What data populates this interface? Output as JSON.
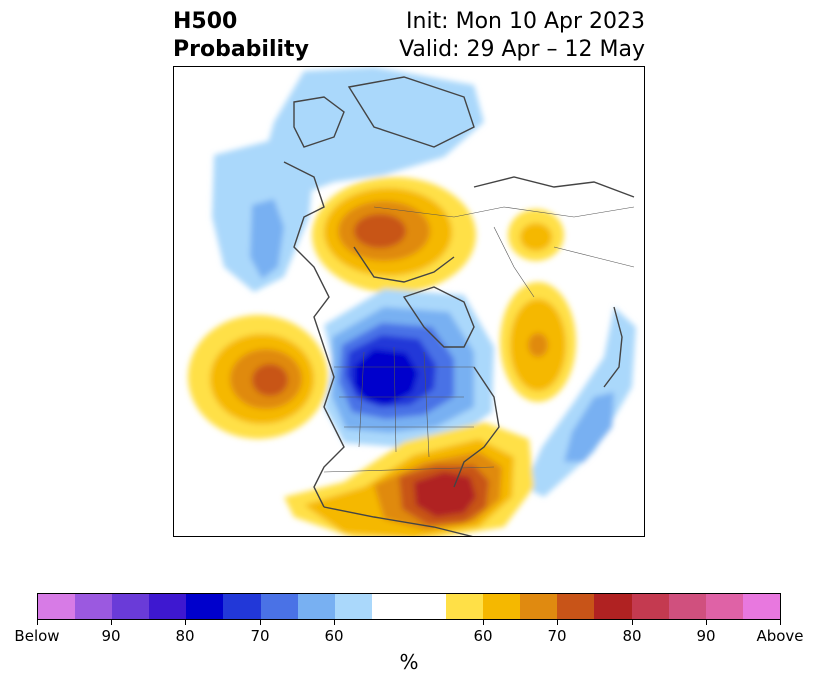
{
  "header": {
    "title_line1": "H500",
    "title_line2": "Probability",
    "init_text": "Init: Mon 10 Apr 2023",
    "valid_text": "Valid: 29 Apr – 12 May"
  },
  "colorbar": {
    "colors": [
      "#d77be6",
      "#9b59e0",
      "#6a3bd8",
      "#3e18d0",
      "#0000cc",
      "#2238d8",
      "#4a72e6",
      "#78b0f2",
      "#aad8fb",
      "#ffffff",
      "#ffe047",
      "#f5b800",
      "#e08a10",
      "#c85418",
      "#b02222",
      "#c43a50",
      "#d0507e",
      "#df62a6",
      "#e878df"
    ],
    "tick_labels": [
      "Below",
      "90",
      "80",
      "70",
      "60",
      "60",
      "70",
      "80",
      "90",
      "Above"
    ],
    "unit": "%"
  },
  "map": {
    "anomalies": [
      {
        "kind": "below",
        "region": "Arctic / Greenland",
        "peak_color": "#aad8fb"
      },
      {
        "kind": "below",
        "region": "Alaska / Bering",
        "peak_color": "#78b0f2"
      },
      {
        "kind": "above",
        "region": "Scandinavia / NW Russia",
        "peak_color": "#c85418"
      },
      {
        "kind": "above",
        "region": "Central Siberia",
        "peak_color": "#f5b800"
      },
      {
        "kind": "below",
        "region": "Central Canada / Hudson Bay",
        "peak_color": "#0000cc"
      },
      {
        "kind": "above",
        "region": "North Pacific",
        "peak_color": "#c85418"
      },
      {
        "kind": "above",
        "region": "North Atlantic",
        "peak_color": "#e08a10"
      },
      {
        "kind": "below",
        "region": "East Asia / NW Pacific",
        "peak_color": "#78b0f2"
      },
      {
        "kind": "above",
        "region": "Eastern United States",
        "peak_color": "#b02222"
      }
    ]
  }
}
